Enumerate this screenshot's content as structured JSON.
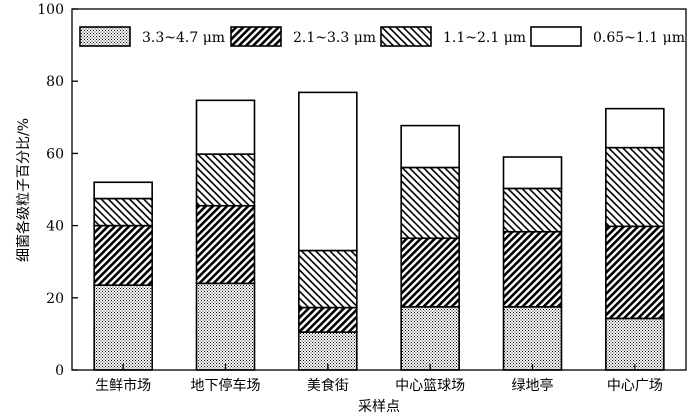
{
  "chart_data": {
    "type": "bar",
    "stacked": true,
    "categories": [
      "生鲜市场",
      "地下停车场",
      "美食街",
      "中心篮球场",
      "绿地亭",
      "中心广场"
    ],
    "series": [
      {
        "name": "3.3~4.7 μm",
        "pattern": "dots",
        "values": [
          23.5,
          24.0,
          10.5,
          17.5,
          17.5,
          14.3
        ]
      },
      {
        "name": "2.1~3.3 μm",
        "pattern": "dense-diagonal",
        "values": [
          16.5,
          21.5,
          6.8,
          19.0,
          20.8,
          25.5
        ]
      },
      {
        "name": "1.1~2.1 μm",
        "pattern": "diagonal",
        "values": [
          7.5,
          14.3,
          15.8,
          19.6,
          12.0,
          21.8
        ]
      },
      {
        "name": "0.65~1.1 μm",
        "pattern": "white",
        "values": [
          4.5,
          14.9,
          43.8,
          11.6,
          8.7,
          10.8
        ]
      }
    ],
    "xlabel": "采样点",
    "ylabel": "细菌各级粒子百分比/%",
    "ylim": [
      0,
      100
    ],
    "yticks": [
      0,
      20,
      40,
      60,
      80,
      100
    ],
    "grid": false,
    "legend_position": "top"
  }
}
